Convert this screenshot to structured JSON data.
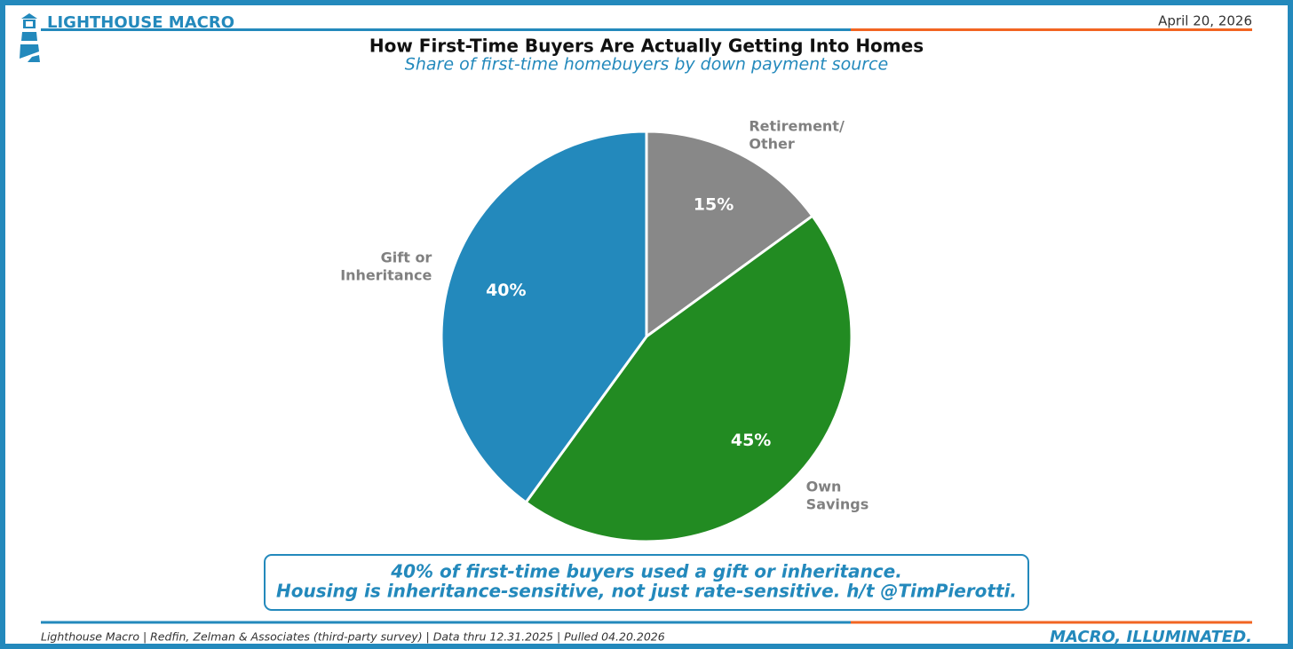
{
  "header": {
    "brand": "LIGHTHOUSE MACRO",
    "date": "April 20, 2026"
  },
  "chart_data": {
    "type": "pie",
    "title": "How First-Time Buyers Are Actually Getting Into Homes",
    "subtitle": "Share of first-time homebuyers by down payment source",
    "categories": [
      "Retirement/\nOther",
      "Own\nSavings",
      "Gift or\nInheritance"
    ],
    "values": [
      15,
      45,
      40
    ],
    "value_labels": [
      "15%",
      "45%",
      "40%"
    ],
    "colors": [
      "#888888",
      "#228b22",
      "#2389bc"
    ],
    "annotation": [
      "40% of first-time buyers used a gift or inheritance.",
      "Housing is inheritance-sensitive, not just rate-sensitive. h/t @TimPierotti."
    ]
  },
  "footer": {
    "source": "Lighthouse Macro | Redfin, Zelman & Associates (third-party survey) | Data thru 12.31.2025 | Pulled 04.20.2026",
    "tagline": "MACRO, ILLUMINATED."
  }
}
